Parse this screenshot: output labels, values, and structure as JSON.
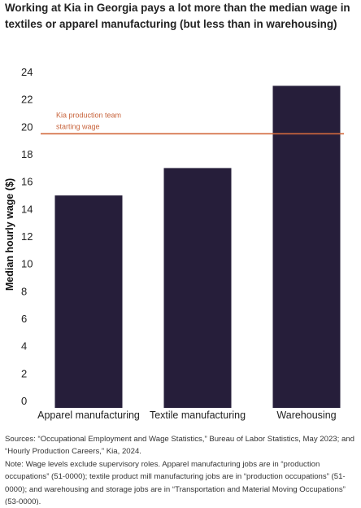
{
  "title": "Working at Kia in Georgia pays a lot more than the median wage in textiles or apparel manufacturing (but less than in warehousing)",
  "chart_data": {
    "type": "bar",
    "categories": [
      "Apparel manufacturing",
      "Textile manufacturing",
      "Warehousing"
    ],
    "values": [
      15.5,
      17.5,
      23.5
    ],
    "ylabel": "Median hourly wage ($)",
    "xlabel": "",
    "ylim": [
      0,
      24
    ],
    "yticks": [
      0,
      2,
      4,
      6,
      8,
      10,
      12,
      14,
      16,
      18,
      20,
      22,
      24
    ],
    "grid": false,
    "colors": {
      "bar": "#261e3a",
      "reference_line": "#d2693c",
      "reference_label": "#c8643c"
    },
    "annotations": [
      {
        "type": "hline",
        "y": 20,
        "label_lines": [
          "Kia production team",
          "starting wage"
        ]
      }
    ]
  },
  "footnotes": {
    "sources": "Sources: “Occupational Employment and Wage Statistics,” Bureau of Labor Statistics, May 2023; and “Hourly Production Careers,” Kia, 2024.",
    "note": "Note: Wage levels exclude supervisory roles. Apparel manufacturing jobs are in “production occupations” (51-0000); textile product mill manufacturing jobs are in “production occupations” (51-0000); and warehousing and storage jobs are in “Transportation and Material Moving Occupations” (53-0000)."
  }
}
